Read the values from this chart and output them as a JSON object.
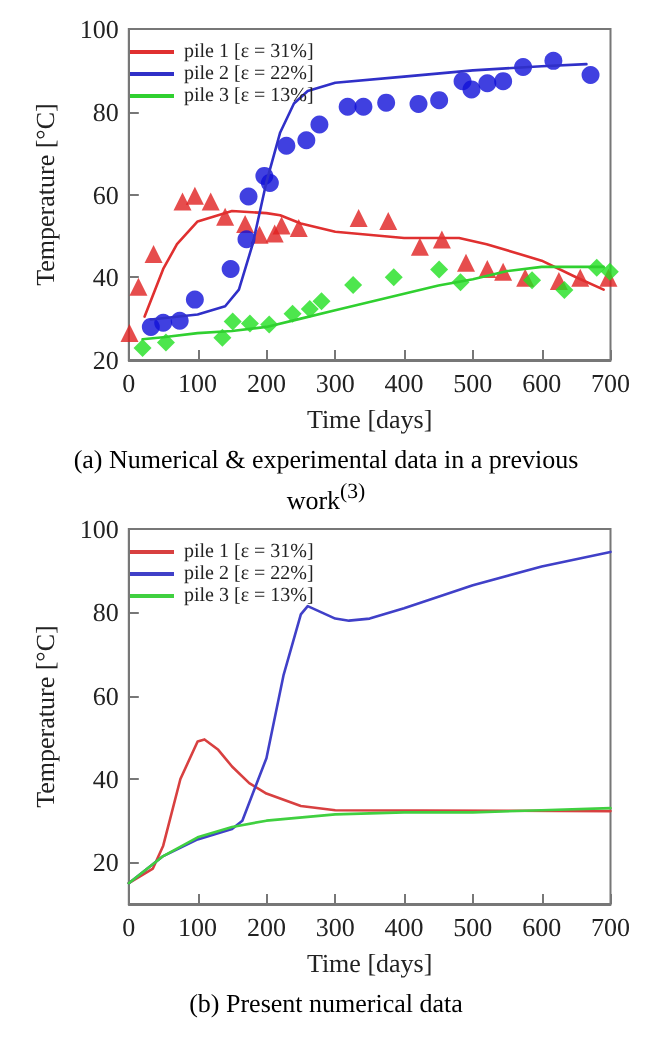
{
  "chart_data": [
    {
      "type": "line",
      "xlabel": "Time [days]",
      "ylabel": "Temperature [°C]",
      "xlim": [
        0,
        700
      ],
      "ylim": [
        20,
        100
      ],
      "xticks": [
        0,
        100,
        200,
        300,
        400,
        500,
        600,
        700
      ],
      "yticks": [
        20,
        40,
        60,
        80,
        100
      ],
      "grid": false,
      "legend": "top left",
      "annotations": [
        "(a) Numerical & experimental data in a previous work$^{(3)}$"
      ],
      "series": [
        {
          "name": "pile 1 [ε = 31%]",
          "color": "#e03030",
          "marker": "none",
          "x": [
            23,
            50,
            70,
            100,
            150,
            200,
            220,
            250,
            300,
            400,
            480,
            520,
            600,
            650,
            690
          ],
          "values": [
            30.5,
            42,
            48,
            53.5,
            56,
            55.5,
            55,
            53,
            51,
            49.5,
            49.5,
            48,
            44,
            40,
            37
          ]
        },
        {
          "name": "pile 2 [ε = 22%]",
          "color": "#3030c8",
          "marker": "none",
          "x": [
            32,
            100,
            140,
            160,
            180,
            200,
            220,
            240,
            260,
            300,
            400,
            500,
            600,
            665
          ],
          "values": [
            29.8,
            31,
            33,
            37,
            48,
            63,
            75,
            82,
            85,
            87,
            88.5,
            90,
            91,
            91.5
          ]
        },
        {
          "name": "pile 3 [ε = 13%]",
          "color": "#30d030",
          "marker": "none",
          "x": [
            20,
            50,
            100,
            150,
            200,
            250,
            300,
            350,
            400,
            450,
            500,
            550,
            600,
            690
          ],
          "values": [
            25,
            25.5,
            26.5,
            27,
            28,
            30,
            32,
            34,
            36,
            38,
            39.5,
            41.5,
            42.5,
            42.5
          ]
        },
        {
          "type": "scatter",
          "color": "#e02020",
          "marker": "triangle",
          "x": [
            1,
            14,
            36,
            78,
            96,
            119,
            140,
            169,
            190,
            212,
            222,
            247,
            334,
            377,
            423,
            455,
            490,
            521,
            544,
            576,
            625,
            656,
            697
          ],
          "values": [
            26.5,
            37.7,
            45.6,
            58.3,
            59.7,
            58.3,
            54.6,
            52.9,
            50.3,
            50.6,
            52.5,
            51.9,
            54.3,
            53.6,
            47.4,
            49.1,
            43.5,
            42,
            41.3,
            39.9,
            39.1,
            39.9,
            39.9
          ]
        },
        {
          "type": "scatter",
          "color": "#1010d8",
          "marker": "circle",
          "x": [
            32,
            50,
            74,
            96,
            148,
            171,
            174,
            197,
            205,
            229,
            258,
            277,
            318,
            341,
            374,
            421,
            451,
            485,
            498,
            521,
            544,
            573,
            617,
            671
          ],
          "values": [
            28,
            29,
            29.5,
            34.6,
            42,
            49.2,
            59.5,
            64.5,
            62.8,
            71.8,
            73.1,
            76.9,
            81.2,
            81.2,
            82.2,
            81.9,
            82.8,
            87.4,
            85.4,
            86.9,
            87.4,
            90.8,
            92.3,
            88.9
          ]
        },
        {
          "type": "scatter",
          "color": "#20e020",
          "marker": "diamond",
          "x": [
            20,
            54,
            136,
            151,
            176,
            204,
            238,
            263,
            280,
            326,
            385,
            451,
            482,
            586,
            633,
            680,
            699
          ],
          "values": [
            22.9,
            24.2,
            25.4,
            29.3,
            28.8,
            28.6,
            31.2,
            32.3,
            34.2,
            38.1,
            40,
            41.9,
            38.8,
            39.3,
            36.9,
            42.3,
            41.3
          ]
        }
      ]
    },
    {
      "type": "line",
      "xlabel": "Time [days]",
      "ylabel": "Temperature [°C]",
      "xlim": [
        0,
        700
      ],
      "ylim": [
        10,
        100
      ],
      "xticks": [
        0,
        100,
        200,
        300,
        400,
        500,
        600,
        700
      ],
      "yticks": [
        20,
        40,
        60,
        80,
        100
      ],
      "grid": false,
      "legend": "top left",
      "annotations": [
        "(b) Present numerical data"
      ],
      "series": [
        {
          "name": "pile 1 [ε = 31%]",
          "color": "#d84040",
          "marker": "none",
          "x": [
            0,
            35,
            50,
            75,
            100,
            110,
            130,
            150,
            175,
            200,
            250,
            300,
            700
          ],
          "values": [
            15,
            18.5,
            24,
            40,
            49,
            49.5,
            47,
            43,
            39,
            36.5,
            33.5,
            32.5,
            32.3
          ]
        },
        {
          "name": "pile 2 [ε = 22%]",
          "color": "#4040c8",
          "marker": "none",
          "x": [
            0,
            50,
            100,
            150,
            165,
            200,
            225,
            250,
            260,
            300,
            320,
            350,
            400,
            500,
            600,
            700
          ],
          "values": [
            15,
            21.5,
            25.5,
            28,
            30,
            45,
            65,
            79.5,
            81.5,
            78.5,
            78,
            78.5,
            81,
            86.5,
            91,
            94.5
          ]
        },
        {
          "name": "pile 3 [ε = 13%]",
          "color": "#40d040",
          "marker": "none",
          "x": [
            0,
            50,
            100,
            150,
            200,
            300,
            400,
            500,
            600,
            700
          ],
          "values": [
            15,
            21.5,
            26,
            28.5,
            30,
            31.5,
            32,
            32,
            32.5,
            33
          ]
        }
      ]
    }
  ]
}
